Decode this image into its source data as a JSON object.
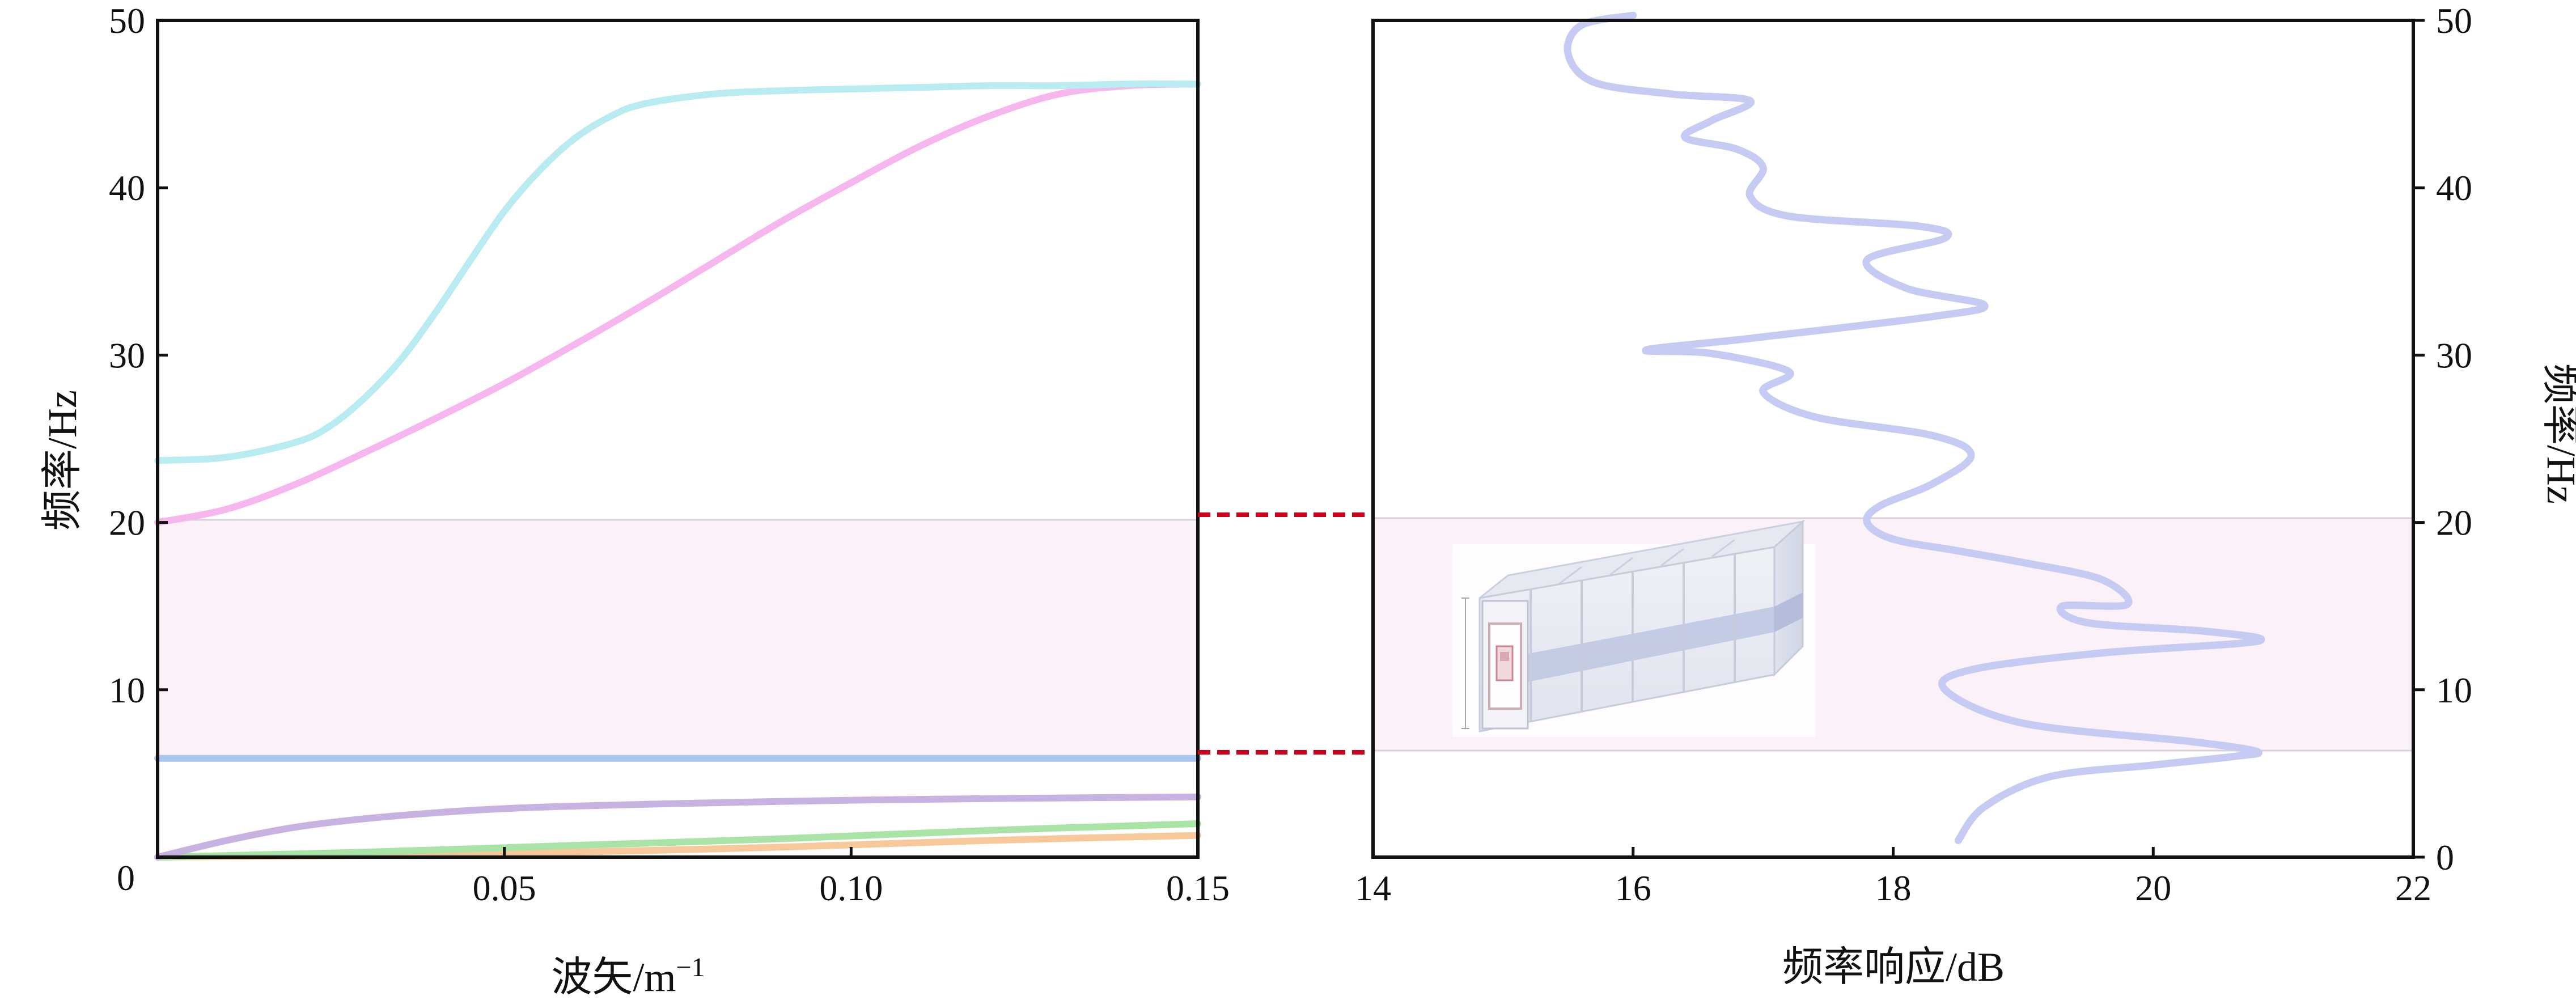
{
  "colors": {
    "axis": "#111111",
    "band_fill": "#fbf1f8",
    "band_edge": "#d8d2d8",
    "connector": "#d0021b"
  },
  "chart_data": [
    {
      "type": "line",
      "panel": "left",
      "xlabel_main": "波矢/m",
      "xlabel_sup": "−1",
      "ylabel": "频率/Hz",
      "xlim": [
        0,
        0.15
      ],
      "ylim": [
        0,
        50
      ],
      "xticks": [
        {
          "value": 0,
          "label": "0"
        },
        {
          "value": 0.05,
          "label": "0.05"
        },
        {
          "value": 0.1,
          "label": "0.10"
        },
        {
          "value": 0.15,
          "label": "0.15"
        }
      ],
      "yticks": [
        {
          "value": 0,
          "label": "0"
        },
        {
          "value": 10,
          "label": "10"
        },
        {
          "value": 20,
          "label": "20"
        },
        {
          "value": 30,
          "label": "30"
        },
        {
          "value": 40,
          "label": "40"
        },
        {
          "value": 50,
          "label": "50"
        }
      ],
      "band_gap": [
        6,
        20
      ],
      "series": [
        {
          "color": "#f7c99a",
          "x": [
            0,
            0.03,
            0.06,
            0.09,
            0.12,
            0.15
          ],
          "y": [
            0,
            0.1,
            0.3,
            0.6,
            1.0,
            1.3
          ]
        },
        {
          "color": "#a9e3a5",
          "x": [
            0,
            0.03,
            0.06,
            0.09,
            0.12,
            0.15
          ],
          "y": [
            0,
            0.3,
            0.7,
            1.1,
            1.6,
            2.0
          ]
        },
        {
          "color": "#c8b2e2",
          "x": [
            0,
            0.01,
            0.02,
            0.03,
            0.04,
            0.05,
            0.06,
            0.08,
            0.1,
            0.12,
            0.15
          ],
          "y": [
            0,
            1.0,
            1.8,
            2.3,
            2.65,
            2.9,
            3.05,
            3.25,
            3.4,
            3.5,
            3.6
          ]
        },
        {
          "color": "#a8c6ef",
          "x": [
            0,
            0.15
          ],
          "y": [
            5.9,
            5.9
          ]
        },
        {
          "color": "#f5b7ee",
          "x": [
            0,
            0.01,
            0.02,
            0.03,
            0.04,
            0.05,
            0.06,
            0.07,
            0.08,
            0.09,
            0.1,
            0.11,
            0.12,
            0.13,
            0.14,
            0.15
          ],
          "y": [
            20,
            20.8,
            22.3,
            24.2,
            26.2,
            28.3,
            30.6,
            33.0,
            35.5,
            38.0,
            40.3,
            42.5,
            44.3,
            45.6,
            46.1,
            46.2
          ]
        },
        {
          "color": "#b9ecf0",
          "x": [
            0,
            0.01,
            0.02,
            0.025,
            0.03,
            0.035,
            0.04,
            0.045,
            0.05,
            0.055,
            0.06,
            0.065,
            0.07,
            0.08,
            0.09,
            0.1,
            0.11,
            0.12,
            0.13,
            0.14,
            0.15
          ],
          "y": [
            23.7,
            23.9,
            24.8,
            25.8,
            27.5,
            29.7,
            32.5,
            35.6,
            38.6,
            41.0,
            42.9,
            44.2,
            45.0,
            45.6,
            45.8,
            45.9,
            46.0,
            46.1,
            46.1,
            46.2,
            46.2
          ]
        }
      ]
    },
    {
      "type": "line",
      "panel": "right",
      "xlabel": "频率响应/dB",
      "ylabel": "频率/Hz",
      "xlim": [
        14,
        22
      ],
      "ylim": [
        0,
        50
      ],
      "xticks": [
        {
          "value": 14,
          "label": "14"
        },
        {
          "value": 16,
          "label": "16"
        },
        {
          "value": 18,
          "label": "18"
        },
        {
          "value": 20,
          "label": "20"
        },
        {
          "value": 22,
          "label": "22"
        }
      ],
      "yticks": [
        {
          "value": 0,
          "label": "0"
        },
        {
          "value": 10,
          "label": "10"
        },
        {
          "value": 20,
          "label": "20"
        },
        {
          "value": 30,
          "label": "30"
        },
        {
          "value": 40,
          "label": "40"
        },
        {
          "value": 50,
          "label": "50"
        }
      ],
      "band_gap": [
        6,
        20
      ],
      "series": [
        {
          "color": "#c6cbf3",
          "x": [
            18.5,
            18.7,
            19.2,
            20.0,
            20.6,
            20.8,
            20.3,
            19.0,
            18.4,
            18.6,
            19.6,
            20.8,
            20.4,
            19.5,
            19.3,
            19.8,
            19.6,
            19.0,
            18.5,
            18.0,
            17.8,
            17.9,
            18.3,
            18.6,
            18.3,
            17.4,
            17.0,
            17.2,
            16.6,
            16.1,
            16.9,
            18.3,
            18.7,
            18.1,
            17.8,
            18.4,
            18.2,
            17.2,
            16.9,
            17.0,
            16.8,
            16.4,
            16.6,
            16.9,
            16.3,
            15.7,
            15.5,
            15.6,
            16.0
          ],
          "y": [
            1,
            3,
            4.8,
            5.5,
            6,
            6.3,
            6.9,
            8.0,
            10,
            11.2,
            12.2,
            12.9,
            13.5,
            14.0,
            15.0,
            15.1,
            16.6,
            17.6,
            18.3,
            19.0,
            20.0,
            21.0,
            22.3,
            24.0,
            25.2,
            26.3,
            27.8,
            29.0,
            30.1,
            30.3,
            31.0,
            32.3,
            33.0,
            34.0,
            35.7,
            37.0,
            37.7,
            38.3,
            39.5,
            41.2,
            42.3,
            43.0,
            44.0,
            45.2,
            45.6,
            46.3,
            48.0,
            49.7,
            50.3
          ]
        }
      ]
    }
  ]
}
